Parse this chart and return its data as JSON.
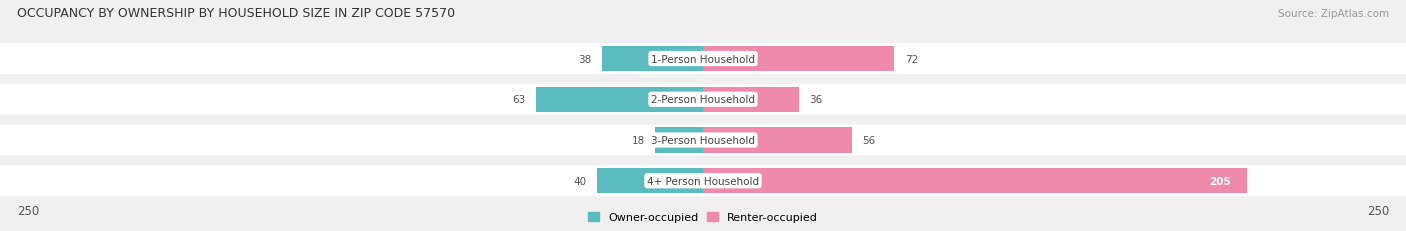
{
  "title": "OCCUPANCY BY OWNERSHIP BY HOUSEHOLD SIZE IN ZIP CODE 57570",
  "source": "Source: ZipAtlas.com",
  "categories": [
    "1-Person Household",
    "2-Person Household",
    "3-Person Household",
    "4+ Person Household"
  ],
  "owner_values": [
    38,
    63,
    18,
    40
  ],
  "renter_values": [
    72,
    36,
    56,
    205
  ],
  "max_val": 250,
  "owner_color": "#5bbcbf",
  "renter_color": "#f08aad",
  "bg_color": "#f0f0f0",
  "row_bg_color": "#ffffff",
  "title_fontsize": 9.0,
  "axis_label_fontsize": 8.5,
  "bar_label_fontsize": 7.5,
  "cat_label_fontsize": 7.5,
  "legend_fontsize": 8.0,
  "source_fontsize": 7.5
}
